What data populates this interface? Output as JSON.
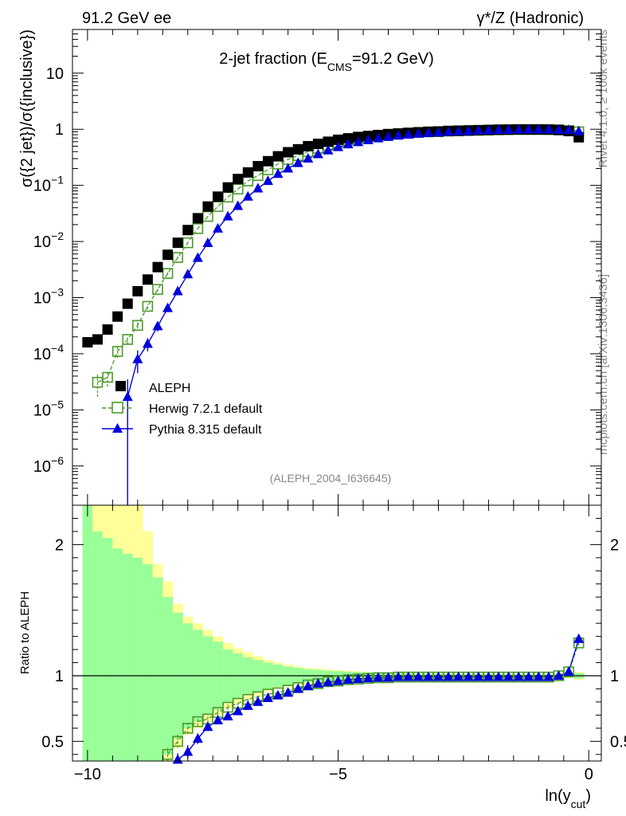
{
  "header": {
    "left_label": "91.2 GeV ee",
    "right_label": "γ*/Z (Hadronic)"
  },
  "side_labels": {
    "rivet": "Rivet 4.1.0, ≥ 100k events",
    "mcplots": "mcplots.cern.ch [arXiv:1306.3436]"
  },
  "chart_data": [
    {
      "type": "scatter",
      "panel": "main",
      "title_parts": {
        "pre": "2-jet fraction (E",
        "sub": "CMS",
        "post": "=91.2 GeV)"
      },
      "ylabel": "σ({2 jet})/σ({inclusive})",
      "yscale": "log",
      "ylim": [
        2e-07,
        60
      ],
      "xlim": [
        -10.3,
        0.25
      ],
      "y_tick_labels": [
        {
          "value": 1e-06,
          "base": "10",
          "exp": "−6"
        },
        {
          "value": 1e-05,
          "base": "10",
          "exp": "−5"
        },
        {
          "value": 0.0001,
          "base": "10",
          "exp": "−4"
        },
        {
          "value": 0.001,
          "base": "10",
          "exp": "−3"
        },
        {
          "value": 0.01,
          "base": "10",
          "exp": "−2"
        },
        {
          "value": 0.1,
          "base": "10",
          "exp": "−1"
        },
        {
          "value": 1,
          "base": "1",
          "exp": ""
        },
        {
          "value": 10,
          "base": "10",
          "exp": ""
        }
      ],
      "watermark": "(ALEPH_2004_I636645)",
      "legend": [
        {
          "name": "ALEPH",
          "color": "#000000",
          "marker": "filled-square"
        },
        {
          "name": "Herwig 7.2.1 default",
          "color": "#4a9a2a",
          "marker": "open-square",
          "line": "dashed"
        },
        {
          "name": "Pythia 8.315 default",
          "color": "#0000dd",
          "marker": "filled-triangle",
          "line": "solid"
        }
      ],
      "series": [
        {
          "name": "ALEPH",
          "x": [
            -10.0,
            -9.8,
            -9.6,
            -9.4,
            -9.2,
            -9.0,
            -8.8,
            -8.6,
            -8.4,
            -8.2,
            -8.0,
            -7.8,
            -7.6,
            -7.4,
            -7.2,
            -7.0,
            -6.8,
            -6.6,
            -6.4,
            -6.2,
            -6.0,
            -5.8,
            -5.6,
            -5.4,
            -5.2,
            -5.0,
            -4.8,
            -4.6,
            -4.4,
            -4.2,
            -4.0,
            -3.8,
            -3.6,
            -3.4,
            -3.2,
            -3.0,
            -2.8,
            -2.6,
            -2.4,
            -2.2,
            -2.0,
            -1.8,
            -1.6,
            -1.4,
            -1.2,
            -1.0,
            -0.8,
            -0.6,
            -0.4,
            -0.2
          ],
          "y": [
            0.00016,
            0.00018,
            0.00027,
            0.00046,
            0.00078,
            0.0013,
            0.0021,
            0.0035,
            0.0058,
            0.0095,
            0.016,
            0.026,
            0.042,
            0.063,
            0.092,
            0.13,
            0.17,
            0.22,
            0.27,
            0.33,
            0.39,
            0.44,
            0.5,
            0.55,
            0.6,
            0.65,
            0.69,
            0.73,
            0.76,
            0.79,
            0.82,
            0.84,
            0.86,
            0.88,
            0.9,
            0.91,
            0.93,
            0.94,
            0.95,
            0.96,
            0.97,
            0.98,
            0.985,
            0.99,
            0.99,
            0.99,
            0.985,
            0.97,
            0.93,
            0.72
          ]
        },
        {
          "name": "Herwig 7.2.1 default",
          "x": [
            -9.8,
            -9.6,
            -9.4,
            -9.2,
            -9.0,
            -8.8,
            -8.6,
            -8.4,
            -8.2,
            -8.0,
            -7.8,
            -7.6,
            -7.4,
            -7.2,
            -7.0,
            -6.8,
            -6.6,
            -6.4,
            -6.2,
            -6.0,
            -5.8,
            -5.6,
            -5.4,
            -5.2,
            -5.0,
            -4.8,
            -4.6,
            -4.4,
            -4.2,
            -4.0,
            -3.8,
            -3.6,
            -3.4,
            -3.2,
            -3.0,
            -2.8,
            -2.6,
            -2.4,
            -2.2,
            -2.0,
            -1.8,
            -1.6,
            -1.4,
            -1.2,
            -1.0,
            -0.8,
            -0.6,
            -0.4,
            -0.2
          ],
          "y": [
            3.1e-05,
            3.8e-05,
            0.00011,
            0.00018,
            0.00032,
            0.0007,
            0.0014,
            0.0027,
            0.0052,
            0.0095,
            0.017,
            0.028,
            0.042,
            0.062,
            0.086,
            0.12,
            0.15,
            0.19,
            0.24,
            0.29,
            0.34,
            0.4,
            0.46,
            0.52,
            0.58,
            0.64,
            0.69,
            0.74,
            0.78,
            0.81,
            0.84,
            0.86,
            0.88,
            0.9,
            0.91,
            0.93,
            0.94,
            0.95,
            0.96,
            0.97,
            0.98,
            0.985,
            0.99,
            0.99,
            0.99,
            0.99,
            0.98,
            0.95,
            0.9
          ],
          "err": [
            1.4e-05,
            1.2e-05,
            2.5e-05,
            3e-05,
            4e-05,
            7e-05,
            0.0001,
            0.00015,
            0.0002,
            0.0003,
            0.0004,
            0.0005,
            0.0006,
            0.0007,
            0.0008,
            0.001,
            0.001,
            0.001,
            0.001,
            0.001,
            0.001,
            0.001,
            0.001,
            0.001,
            0.001,
            0.001,
            0.001,
            0.001,
            0.001,
            0.001,
            0.001,
            0.001,
            0.001,
            0.001,
            0.001,
            0.001,
            0.001,
            0.001,
            0.001,
            0.001,
            0.001,
            0.001,
            0.001,
            0.001,
            0.001,
            0.001,
            0.001,
            0.001,
            0.001
          ]
        },
        {
          "name": "Pythia 8.315 default",
          "x": [
            -9.2,
            -9.0,
            -8.8,
            -8.6,
            -8.4,
            -8.2,
            -8.0,
            -7.8,
            -7.6,
            -7.4,
            -7.2,
            -7.0,
            -6.8,
            -6.6,
            -6.4,
            -6.2,
            -6.0,
            -5.8,
            -5.6,
            -5.4,
            -5.2,
            -5.0,
            -4.8,
            -4.6,
            -4.4,
            -4.2,
            -4.0,
            -3.8,
            -3.6,
            -3.4,
            -3.2,
            -3.0,
            -2.8,
            -2.6,
            -2.4,
            -2.2,
            -2.0,
            -1.8,
            -1.6,
            -1.4,
            -1.2,
            -1.0,
            -0.8,
            -0.6,
            -0.4,
            -0.2
          ],
          "y": [
            1.7e-05,
            8e-05,
            0.00015,
            0.00031,
            0.00065,
            0.0013,
            0.0026,
            0.0051,
            0.0094,
            0.017,
            0.028,
            0.043,
            0.063,
            0.088,
            0.12,
            0.16,
            0.2,
            0.25,
            0.3,
            0.36,
            0.42,
            0.48,
            0.54,
            0.59,
            0.64,
            0.69,
            0.73,
            0.77,
            0.8,
            0.83,
            0.86,
            0.88,
            0.9,
            0.92,
            0.93,
            0.95,
            0.96,
            0.97,
            0.98,
            0.985,
            0.99,
            0.99,
            0.99,
            0.98,
            0.97,
            0.92
          ],
          "err": [
            1.8e-05,
            3.5e-05,
            4e-05,
            6e-05,
            9e-05,
            0.00013,
            0.0002,
            0.0003,
            0.0004,
            0.0005,
            0.0006,
            0.0007,
            0.0008,
            0.0009,
            0.001,
            0.001,
            0.001,
            0.001,
            0.001,
            0.001,
            0.001,
            0.001,
            0.001,
            0.001,
            0.001,
            0.001,
            0.001,
            0.001,
            0.001,
            0.001,
            0.001,
            0.001,
            0.001,
            0.001,
            0.001,
            0.001,
            0.001,
            0.001,
            0.001,
            0.001,
            0.001,
            0.001,
            0.001,
            0.001,
            0.001,
            0.001
          ]
        }
      ]
    },
    {
      "type": "line",
      "panel": "ratio",
      "ylabel": "Ratio to ALEPH",
      "xlabel_parts": {
        "pre": "ln(y",
        "sub": "cut",
        "post": ")"
      },
      "ylim": [
        0.35,
        2.3
      ],
      "xlim": [
        -10.3,
        0.25
      ],
      "x_tick_labels": [
        {
          "value": -10,
          "label": "−10"
        },
        {
          "value": -5,
          "label": "−5"
        },
        {
          "value": 0,
          "label": "0"
        }
      ],
      "y_tick_labels": [
        {
          "value": 0.5,
          "label": "0.5"
        },
        {
          "value": 1,
          "label": "1"
        },
        {
          "value": 2,
          "label": "2"
        }
      ],
      "bands": {
        "x_edges": [
          -10.1,
          -9.9,
          -9.7,
          -9.5,
          -9.3,
          -9.1,
          -8.9,
          -8.7,
          -8.5,
          -8.3,
          -8.1,
          -7.9,
          -7.7,
          -7.5,
          -7.3,
          -7.1,
          -6.9,
          -6.7,
          -6.5,
          -6.3,
          -6.1,
          -5.9,
          -5.7,
          -5.5,
          -5.3,
          -5.1,
          -4.9,
          -4.7,
          -4.5,
          -4.3,
          -4.1,
          -3.9,
          -3.7,
          -3.5,
          -3.3,
          -3.1,
          -2.9,
          -2.7,
          -2.5,
          -2.3,
          -2.1,
          -1.9,
          -1.7,
          -1.5,
          -1.3,
          -1.1,
          -0.9,
          -0.7,
          -0.5,
          -0.3,
          -0.1
        ],
        "stat_half_width": [
          1.9,
          1.1,
          1.05,
          0.97,
          0.93,
          0.9,
          0.85,
          0.75,
          0.6,
          0.48,
          0.4,
          0.35,
          0.3,
          0.26,
          0.2,
          0.17,
          0.14,
          0.12,
          0.1,
          0.085,
          0.07,
          0.06,
          0.05,
          0.045,
          0.04,
          0.035,
          0.03,
          0.028,
          0.025,
          0.022,
          0.02,
          0.018,
          0.016,
          0.015,
          0.014,
          0.013,
          0.012,
          0.012,
          0.011,
          0.011,
          0.01,
          0.01,
          0.01,
          0.01,
          0.01,
          0.01,
          0.01,
          0.012,
          0.015,
          0.02
        ],
        "total_half_width": [
          2.0,
          1.95,
          1.85,
          1.7,
          1.5,
          1.35,
          1.1,
          0.85,
          0.72,
          0.55,
          0.45,
          0.4,
          0.35,
          0.3,
          0.25,
          0.21,
          0.18,
          0.15,
          0.12,
          0.1,
          0.085,
          0.07,
          0.06,
          0.055,
          0.048,
          0.042,
          0.038,
          0.034,
          0.03,
          0.027,
          0.024,
          0.022,
          0.02,
          0.019,
          0.018,
          0.017,
          0.016,
          0.015,
          0.015,
          0.014,
          0.014,
          0.013,
          0.013,
          0.013,
          0.013,
          0.013,
          0.014,
          0.016,
          0.02,
          0.03
        ]
      },
      "series": [
        {
          "name": "Herwig 7.2.1 default",
          "x": [
            -8.4,
            -8.2,
            -8.0,
            -7.8,
            -7.6,
            -7.4,
            -7.2,
            -7.0,
            -6.8,
            -6.6,
            -6.4,
            -6.2,
            -6.0,
            -5.8,
            -5.6,
            -5.4,
            -5.2,
            -5.0,
            -4.8,
            -4.6,
            -4.4,
            -4.2,
            -4.0,
            -3.8,
            -3.6,
            -3.4,
            -3.2,
            -3.0,
            -2.8,
            -2.6,
            -2.4,
            -2.2,
            -2.0,
            -1.8,
            -1.6,
            -1.4,
            -1.2,
            -1.0,
            -0.8,
            -0.6,
            -0.4,
            -0.2
          ],
          "y": [
            0.4,
            0.5,
            0.6,
            0.65,
            0.67,
            0.72,
            0.76,
            0.79,
            0.82,
            0.84,
            0.86,
            0.87,
            0.89,
            0.91,
            0.93,
            0.94,
            0.955,
            0.96,
            0.97,
            0.975,
            0.98,
            0.985,
            0.985,
            0.99,
            0.99,
            0.99,
            0.99,
            0.99,
            0.99,
            0.99,
            0.99,
            0.99,
            0.99,
            0.99,
            0.99,
            0.99,
            0.99,
            0.99,
            0.99,
            1.0,
            1.03,
            1.25
          ],
          "err": [
            0.05,
            0.05,
            0.04,
            0.03,
            0.03,
            0.025,
            0.02,
            0.015,
            0.015,
            0.01,
            0.01,
            0.01,
            0.01,
            0.01,
            0.01,
            0.01,
            0.01,
            0.01,
            0.01,
            0.01,
            0.01,
            0.01,
            0.01,
            0.01,
            0.01,
            0.01,
            0.01,
            0.01,
            0.01,
            0.01,
            0.01,
            0.01,
            0.01,
            0.01,
            0.01,
            0.01,
            0.01,
            0.01,
            0.01,
            0.01,
            0.01,
            0.02
          ]
        },
        {
          "name": "Pythia 8.315 default",
          "x": [
            -8.2,
            -8.0,
            -7.8,
            -7.6,
            -7.4,
            -7.2,
            -7.0,
            -6.8,
            -6.6,
            -6.4,
            -6.2,
            -6.0,
            -5.8,
            -5.6,
            -5.4,
            -5.2,
            -5.0,
            -4.8,
            -4.6,
            -4.4,
            -4.2,
            -4.0,
            -3.8,
            -3.6,
            -3.4,
            -3.2,
            -3.0,
            -2.8,
            -2.6,
            -2.4,
            -2.2,
            -2.0,
            -1.8,
            -1.6,
            -1.4,
            -1.2,
            -1.0,
            -0.8,
            -0.6,
            -0.4,
            -0.2
          ],
          "y": [
            0.36,
            0.42,
            0.52,
            0.61,
            0.66,
            0.69,
            0.73,
            0.77,
            0.8,
            0.83,
            0.85,
            0.87,
            0.9,
            0.92,
            0.94,
            0.95,
            0.96,
            0.97,
            0.975,
            0.98,
            0.985,
            0.985,
            0.99,
            0.99,
            0.99,
            0.99,
            0.99,
            0.99,
            0.99,
            0.99,
            0.99,
            0.99,
            0.99,
            0.99,
            0.99,
            0.99,
            0.99,
            0.99,
            1.0,
            1.03,
            1.28
          ],
          "err": [
            0.05,
            0.05,
            0.04,
            0.03,
            0.03,
            0.025,
            0.02,
            0.015,
            0.015,
            0.01,
            0.01,
            0.01,
            0.01,
            0.01,
            0.01,
            0.01,
            0.01,
            0.01,
            0.01,
            0.01,
            0.01,
            0.01,
            0.01,
            0.01,
            0.01,
            0.01,
            0.01,
            0.01,
            0.01,
            0.01,
            0.01,
            0.01,
            0.01,
            0.01,
            0.01,
            0.01,
            0.01,
            0.01,
            0.01,
            0.01,
            0.02
          ]
        }
      ]
    }
  ]
}
